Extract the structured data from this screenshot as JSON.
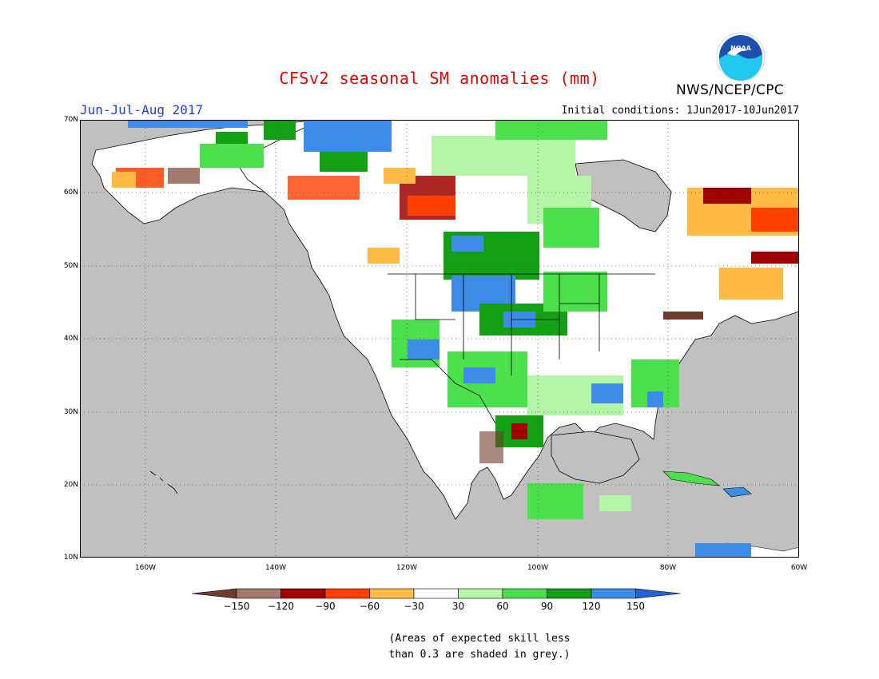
{
  "title": "CFSv2 seasonal SM anomalies (mm)",
  "season": "Jun-Jul-Aug 2017",
  "initial_conditions": "Initial conditions: 1Jun2017-10Jun2017",
  "agency": "NWS/NCEP/CPC",
  "logo": {
    "icon": "noaa-logo-icon",
    "text": "NOAA"
  },
  "map": {
    "region": "North America",
    "lon_range": [
      -170,
      -60
    ],
    "lat_range": [
      10,
      70
    ],
    "lat_labels": [
      "70N",
      "60N",
      "50N",
      "40N",
      "30N",
      "20N",
      "10N"
    ],
    "lon_labels": [
      "160W",
      "140W",
      "120W",
      "100W",
      "80W",
      "60W"
    ],
    "colors": {
      "low_skill_grey": "#c0c0c0",
      "ocean": "#c0c0c0",
      "land_no_anomaly": "#ffffff"
    }
  },
  "legend": {
    "labels": [
      "-150",
      "-120",
      "-90",
      "-60",
      "-30",
      "30",
      "60",
      "90",
      "120",
      "150"
    ],
    "colors": [
      "#6e3c2c",
      "#a47a6f",
      "#a00000",
      "#ff4000",
      "#ffbb44",
      "#ffffff",
      "#b4f5a8",
      "#4ce04c",
      "#14a014",
      "#3c8ce8",
      "#2860d8"
    ]
  },
  "note": {
    "line1": "(Areas of expected skill less",
    "line2": "than 0.3 are shaded in grey.)"
  }
}
